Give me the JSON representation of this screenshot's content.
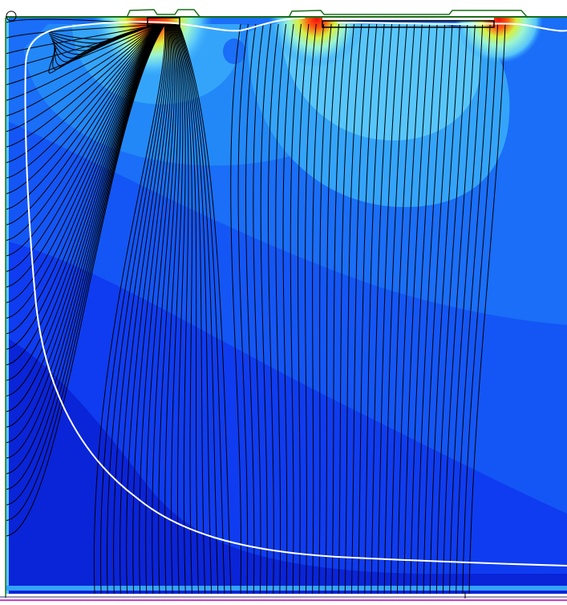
{
  "colors": {
    "background": "#ffffff",
    "outline_green": "#1a6e1a",
    "bottom_magenta": "#d23cd2",
    "flux_line": "#000000",
    "boundary_line": "#ffffff",
    "field_levels": [
      "#0a24d8",
      "#0f3cf0",
      "#1456f5",
      "#1a6ef7",
      "#2288f8",
      "#34a4fa",
      "#58c6fb",
      "#86e3f4",
      "#9cf5d0",
      "#d8f040",
      "#ff5a10",
      "#f01010"
    ]
  },
  "regions": {
    "left_contact": "contact",
    "right_contact": "contact"
  }
}
